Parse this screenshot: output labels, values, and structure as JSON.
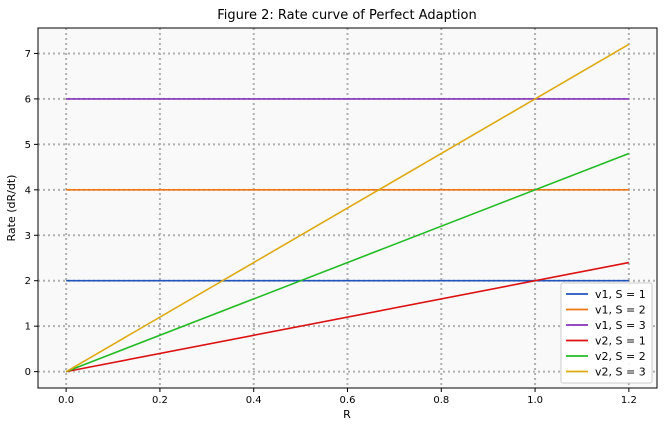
{
  "chart_data": {
    "type": "line",
    "title": "Figure 2: Rate curve of Perfect Adaption",
    "xlabel": "R",
    "ylabel": "Rate (dR/dt)",
    "xlim": [
      -0.06,
      1.26
    ],
    "ylim": [
      -0.36,
      7.56
    ],
    "xticks": [
      0.0,
      0.2,
      0.4,
      0.6,
      0.8,
      1.0,
      1.2
    ],
    "xtick_labels": [
      "0.0",
      "0.2",
      "0.4",
      "0.6",
      "0.8",
      "1.0",
      "1.2"
    ],
    "yticks": [
      0,
      1,
      2,
      3,
      4,
      5,
      6,
      7
    ],
    "ytick_labels": [
      "0",
      "1",
      "2",
      "3",
      "4",
      "5",
      "6",
      "7"
    ],
    "grid": true,
    "legend_position": "lower-right",
    "background": "#f9f9f9",
    "series": [
      {
        "name": "v1, S = 1",
        "color": "#2255bb",
        "x": [
          0.0,
          1.2
        ],
        "y": [
          2,
          2
        ]
      },
      {
        "name": "v1, S = 2",
        "color": "#ee7711",
        "x": [
          0.0,
          1.2
        ],
        "y": [
          4,
          4
        ]
      },
      {
        "name": "v1, S = 3",
        "color": "#8833bb",
        "x": [
          0.0,
          1.2
        ],
        "y": [
          6,
          6
        ]
      },
      {
        "name": "v2, S = 1",
        "color": "#dd1111",
        "x": [
          0.0,
          1.2
        ],
        "y": [
          0,
          2.4
        ]
      },
      {
        "name": "v2, S = 2",
        "color": "#22bb22",
        "x": [
          0.0,
          1.2
        ],
        "y": [
          0,
          4.8
        ]
      },
      {
        "name": "v2, S = 3",
        "color": "#ddaa11",
        "x": [
          0.0,
          1.2
        ],
        "y": [
          0,
          7.2
        ]
      }
    ]
  }
}
